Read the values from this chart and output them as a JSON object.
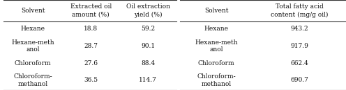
{
  "table1": {
    "headers": [
      "Solvent",
      "Extracted oil\namount (%)",
      "Oil extraction\nyield (%)"
    ],
    "rows": [
      [
        "Hexane",
        "18.8",
        "59.2"
      ],
      [
        "Hexane-meth\nanol",
        "28.7",
        "90.1"
      ],
      [
        "Chloroform",
        "27.6",
        "88.4"
      ],
      [
        "Chloroform-\nmethanol",
        "36.5",
        "114.7"
      ]
    ]
  },
  "table2": {
    "headers": [
      "Solvent",
      "Total fatty acid\ncontent (mg/g oil)"
    ],
    "rows": [
      [
        "Hexane",
        "943.2"
      ],
      [
        "Hexane-meth\nanol",
        "917.9"
      ],
      [
        "Chloroform",
        "662.4"
      ],
      [
        "Chloroform-\nmethanol",
        "690.7"
      ]
    ]
  },
  "font_size": 6.5,
  "header_font_size": 6.5,
  "background": "#ffffff",
  "line_color": "#333333",
  "text_color": "#111111",
  "font_family": "serif"
}
